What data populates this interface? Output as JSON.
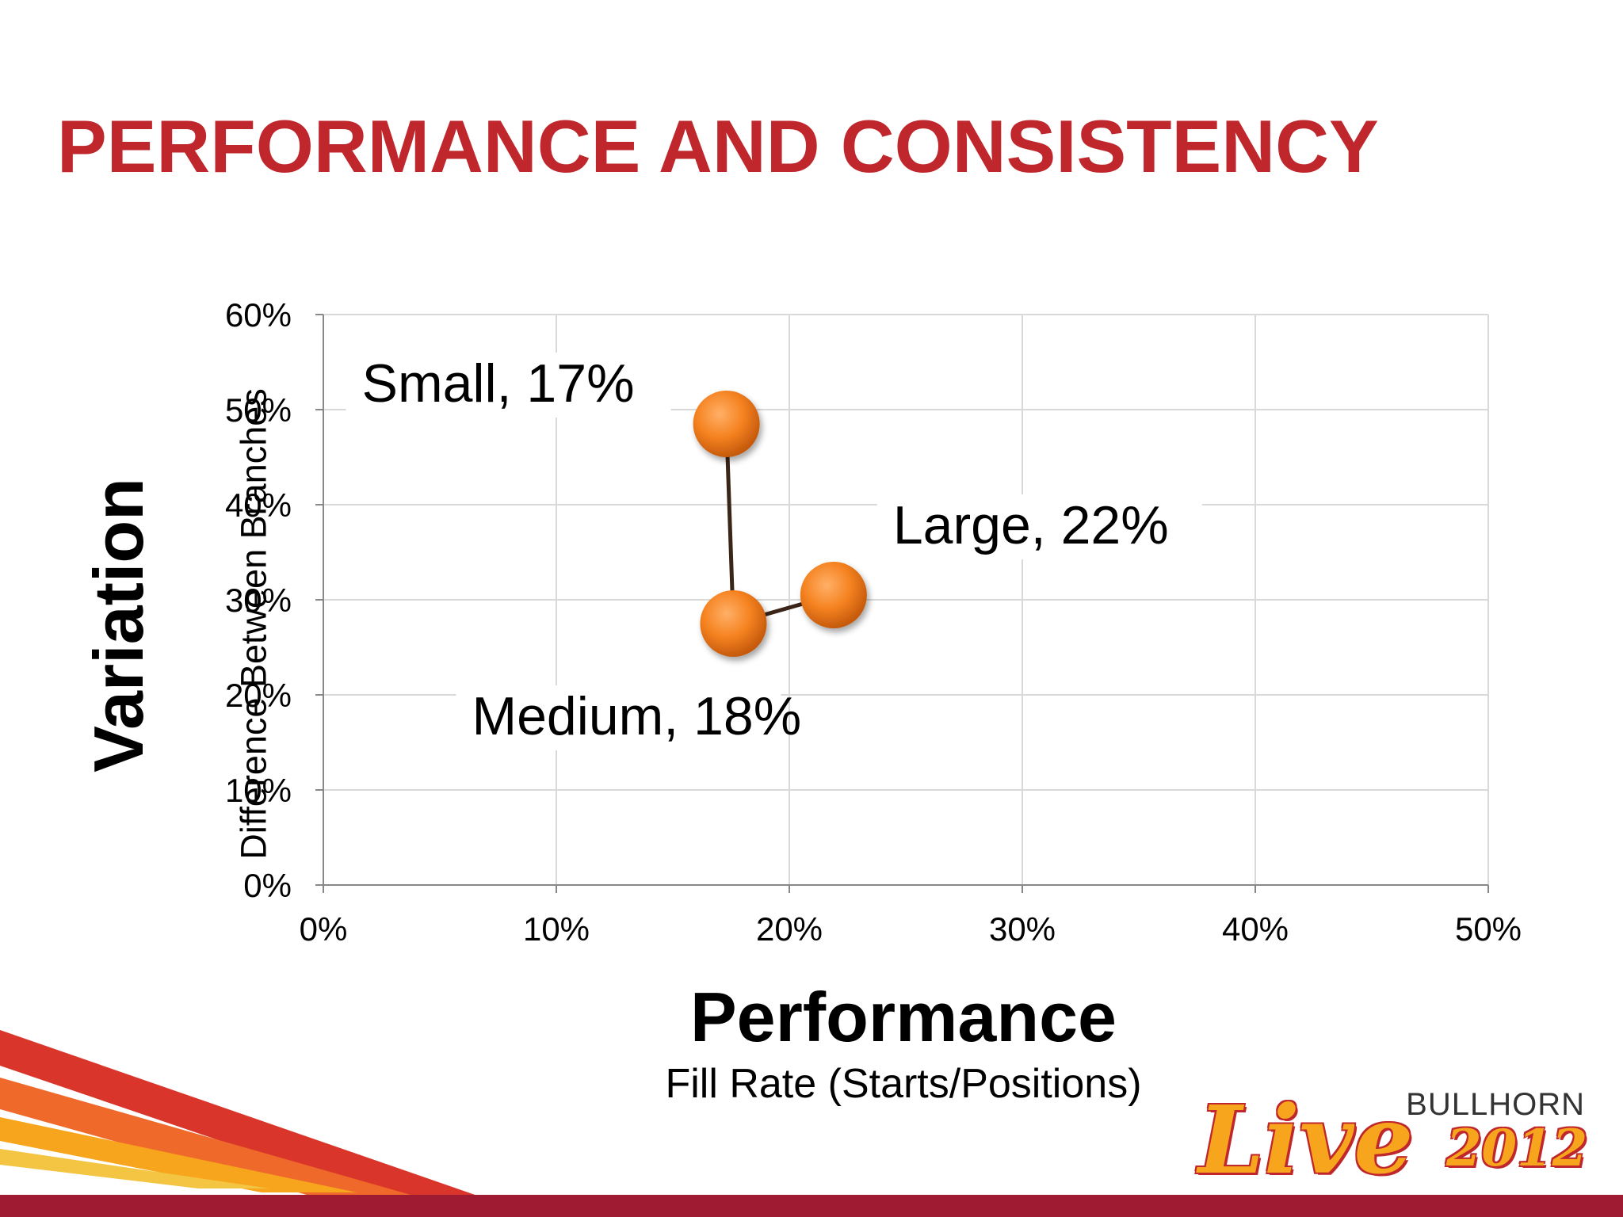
{
  "slide": {
    "title": "PERFORMANCE AND CONSISTENCY",
    "accent_color": "#c0272d",
    "footer_stripe_colors": [
      "#c0272d",
      "#e8632a",
      "#f7a51c",
      "#f4c542"
    ]
  },
  "chart_data": {
    "type": "scatter",
    "title": "",
    "xlabel": "Performance",
    "xlabel_sub": "Fill Rate (Starts/Positions)",
    "ylabel": "Variation",
    "ylabel_sub": "Difference Between Branches",
    "xlim": [
      0,
      0.5
    ],
    "ylim": [
      0,
      0.6
    ],
    "x_ticks": [
      "0%",
      "10%",
      "20%",
      "30%",
      "40%",
      "50%"
    ],
    "y_ticks": [
      "0%",
      "10%",
      "20%",
      "30%",
      "40%",
      "50%",
      "60%"
    ],
    "x_tick_values": [
      0,
      0.1,
      0.2,
      0.3,
      0.4,
      0.5
    ],
    "y_tick_values": [
      0,
      0.1,
      0.2,
      0.3,
      0.4,
      0.5,
      0.6
    ],
    "grid": true,
    "connected": true,
    "marker_color": "#f58220",
    "line_color": "#3b2418",
    "points": [
      {
        "label": "Small, 17%",
        "x": 0.173,
        "y": 0.485
      },
      {
        "label": "Medium, 18%",
        "x": 0.176,
        "y": 0.275
      },
      {
        "label": "Large, 22%",
        "x": 0.219,
        "y": 0.305
      }
    ]
  },
  "logo": {
    "brand": "BULLHORN",
    "event": "Live",
    "year": "2012"
  }
}
